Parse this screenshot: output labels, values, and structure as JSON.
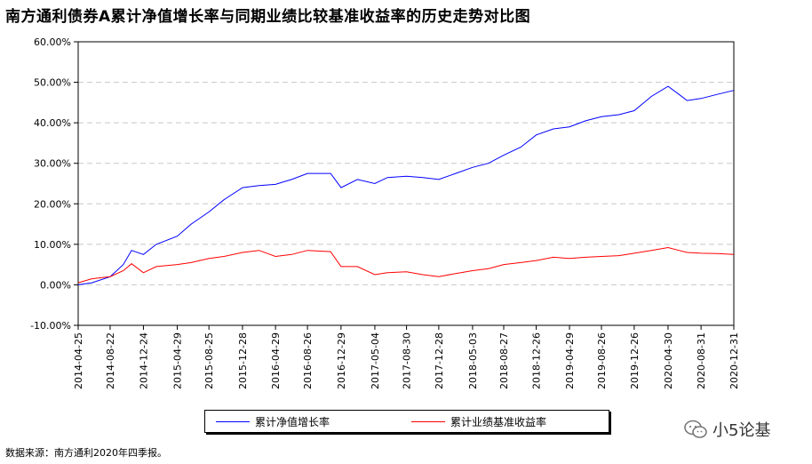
{
  "title": "南方通利债券A累计净值增长率与同期业绩比较基准收益率的历史走势对比图",
  "source_note": "数据来源：南方通利2020年四季报。",
  "watermark": "小5论基",
  "colors": {
    "fund": "#0000ff",
    "benchmark": "#ff0000",
    "grid": "#c8c8c8"
  },
  "icons": {
    "watermark": "wechat-logo-icon"
  },
  "chart_data": {
    "type": "line",
    "title": "南方通利债券A累计净值增长率与同期业绩比较基准收益率的历史走势对比图",
    "xlabel": "",
    "ylabel": "",
    "ylim": [
      -0.1,
      0.6
    ],
    "yticks": [
      -0.1,
      0.0,
      0.1,
      0.2,
      0.3,
      0.4,
      0.5,
      0.6
    ],
    "ytick_labels": [
      "-10.00%",
      "0.00%",
      "10.00%",
      "20.00%",
      "30.00%",
      "40.00%",
      "50.00%",
      "60.00%"
    ],
    "grid": true,
    "legend_position": "bottom",
    "x_ticks": [
      "2014-04-25",
      "2014-08-22",
      "2014-12-24",
      "2015-04-29",
      "2015-08-25",
      "2015-12-28",
      "2016-04-29",
      "2016-08-26",
      "2016-12-29",
      "2017-05-04",
      "2017-08-30",
      "2017-12-28",
      "2018-05-03",
      "2018-08-27",
      "2018-12-26",
      "2019-04-29",
      "2019-08-26",
      "2019-12-26",
      "2020-04-30",
      "2020-08-31",
      "2020-12-31"
    ],
    "series": [
      {
        "name": "累计净值增长率",
        "color": "#0000ff",
        "points": [
          [
            "2014-04-25",
            0.0
          ],
          [
            "2014-06-15",
            0.005
          ],
          [
            "2014-08-22",
            0.02
          ],
          [
            "2014-10-10",
            0.05
          ],
          [
            "2014-11-10",
            0.085
          ],
          [
            "2014-12-24",
            0.075
          ],
          [
            "2015-02-10",
            0.1
          ],
          [
            "2015-04-29",
            0.12
          ],
          [
            "2015-06-20",
            0.15
          ],
          [
            "2015-08-25",
            0.18
          ],
          [
            "2015-10-20",
            0.21
          ],
          [
            "2015-12-28",
            0.24
          ],
          [
            "2016-02-28",
            0.245
          ],
          [
            "2016-04-29",
            0.248
          ],
          [
            "2016-06-28",
            0.26
          ],
          [
            "2016-08-26",
            0.275
          ],
          [
            "2016-11-20",
            0.275
          ],
          [
            "2016-12-29",
            0.24
          ],
          [
            "2017-02-28",
            0.26
          ],
          [
            "2017-05-04",
            0.25
          ],
          [
            "2017-06-20",
            0.265
          ],
          [
            "2017-08-30",
            0.268
          ],
          [
            "2017-10-30",
            0.265
          ],
          [
            "2017-12-28",
            0.26
          ],
          [
            "2018-03-01",
            0.275
          ],
          [
            "2018-05-03",
            0.29
          ],
          [
            "2018-07-01",
            0.3
          ],
          [
            "2018-08-27",
            0.32
          ],
          [
            "2018-10-30",
            0.34
          ],
          [
            "2018-12-26",
            0.37
          ],
          [
            "2019-02-28",
            0.385
          ],
          [
            "2019-04-29",
            0.39
          ],
          [
            "2019-06-28",
            0.405
          ],
          [
            "2019-08-26",
            0.415
          ],
          [
            "2019-10-30",
            0.42
          ],
          [
            "2019-12-26",
            0.43
          ],
          [
            "2020-02-28",
            0.465
          ],
          [
            "2020-04-30",
            0.49
          ],
          [
            "2020-06-10",
            0.47
          ],
          [
            "2020-07-10",
            0.455
          ],
          [
            "2020-08-31",
            0.46
          ],
          [
            "2020-10-30",
            0.47
          ],
          [
            "2020-12-31",
            0.48
          ]
        ]
      },
      {
        "name": "累计业绩基准收益率",
        "color": "#ff0000",
        "points": [
          [
            "2014-04-25",
            0.005
          ],
          [
            "2014-06-15",
            0.015
          ],
          [
            "2014-08-22",
            0.02
          ],
          [
            "2014-10-10",
            0.035
          ],
          [
            "2014-11-10",
            0.052
          ],
          [
            "2014-12-24",
            0.03
          ],
          [
            "2015-02-10",
            0.045
          ],
          [
            "2015-04-29",
            0.05
          ],
          [
            "2015-06-20",
            0.055
          ],
          [
            "2015-08-25",
            0.065
          ],
          [
            "2015-10-20",
            0.07
          ],
          [
            "2015-12-28",
            0.08
          ],
          [
            "2016-02-28",
            0.085
          ],
          [
            "2016-04-29",
            0.07
          ],
          [
            "2016-06-28",
            0.075
          ],
          [
            "2016-08-26",
            0.085
          ],
          [
            "2016-11-20",
            0.082
          ],
          [
            "2016-12-29",
            0.045
          ],
          [
            "2017-02-28",
            0.045
          ],
          [
            "2017-05-04",
            0.025
          ],
          [
            "2017-06-20",
            0.03
          ],
          [
            "2017-08-30",
            0.032
          ],
          [
            "2017-10-30",
            0.025
          ],
          [
            "2017-12-28",
            0.02
          ],
          [
            "2018-03-01",
            0.028
          ],
          [
            "2018-05-03",
            0.035
          ],
          [
            "2018-07-01",
            0.04
          ],
          [
            "2018-08-27",
            0.05
          ],
          [
            "2018-10-30",
            0.055
          ],
          [
            "2018-12-26",
            0.06
          ],
          [
            "2019-02-28",
            0.068
          ],
          [
            "2019-04-29",
            0.065
          ],
          [
            "2019-06-28",
            0.068
          ],
          [
            "2019-08-26",
            0.07
          ],
          [
            "2019-10-30",
            0.072
          ],
          [
            "2019-12-26",
            0.078
          ],
          [
            "2020-02-28",
            0.085
          ],
          [
            "2020-04-30",
            0.092
          ],
          [
            "2020-06-10",
            0.085
          ],
          [
            "2020-07-10",
            0.08
          ],
          [
            "2020-08-31",
            0.078
          ],
          [
            "2020-10-30",
            0.077
          ],
          [
            "2020-12-31",
            0.075
          ]
        ]
      }
    ]
  }
}
